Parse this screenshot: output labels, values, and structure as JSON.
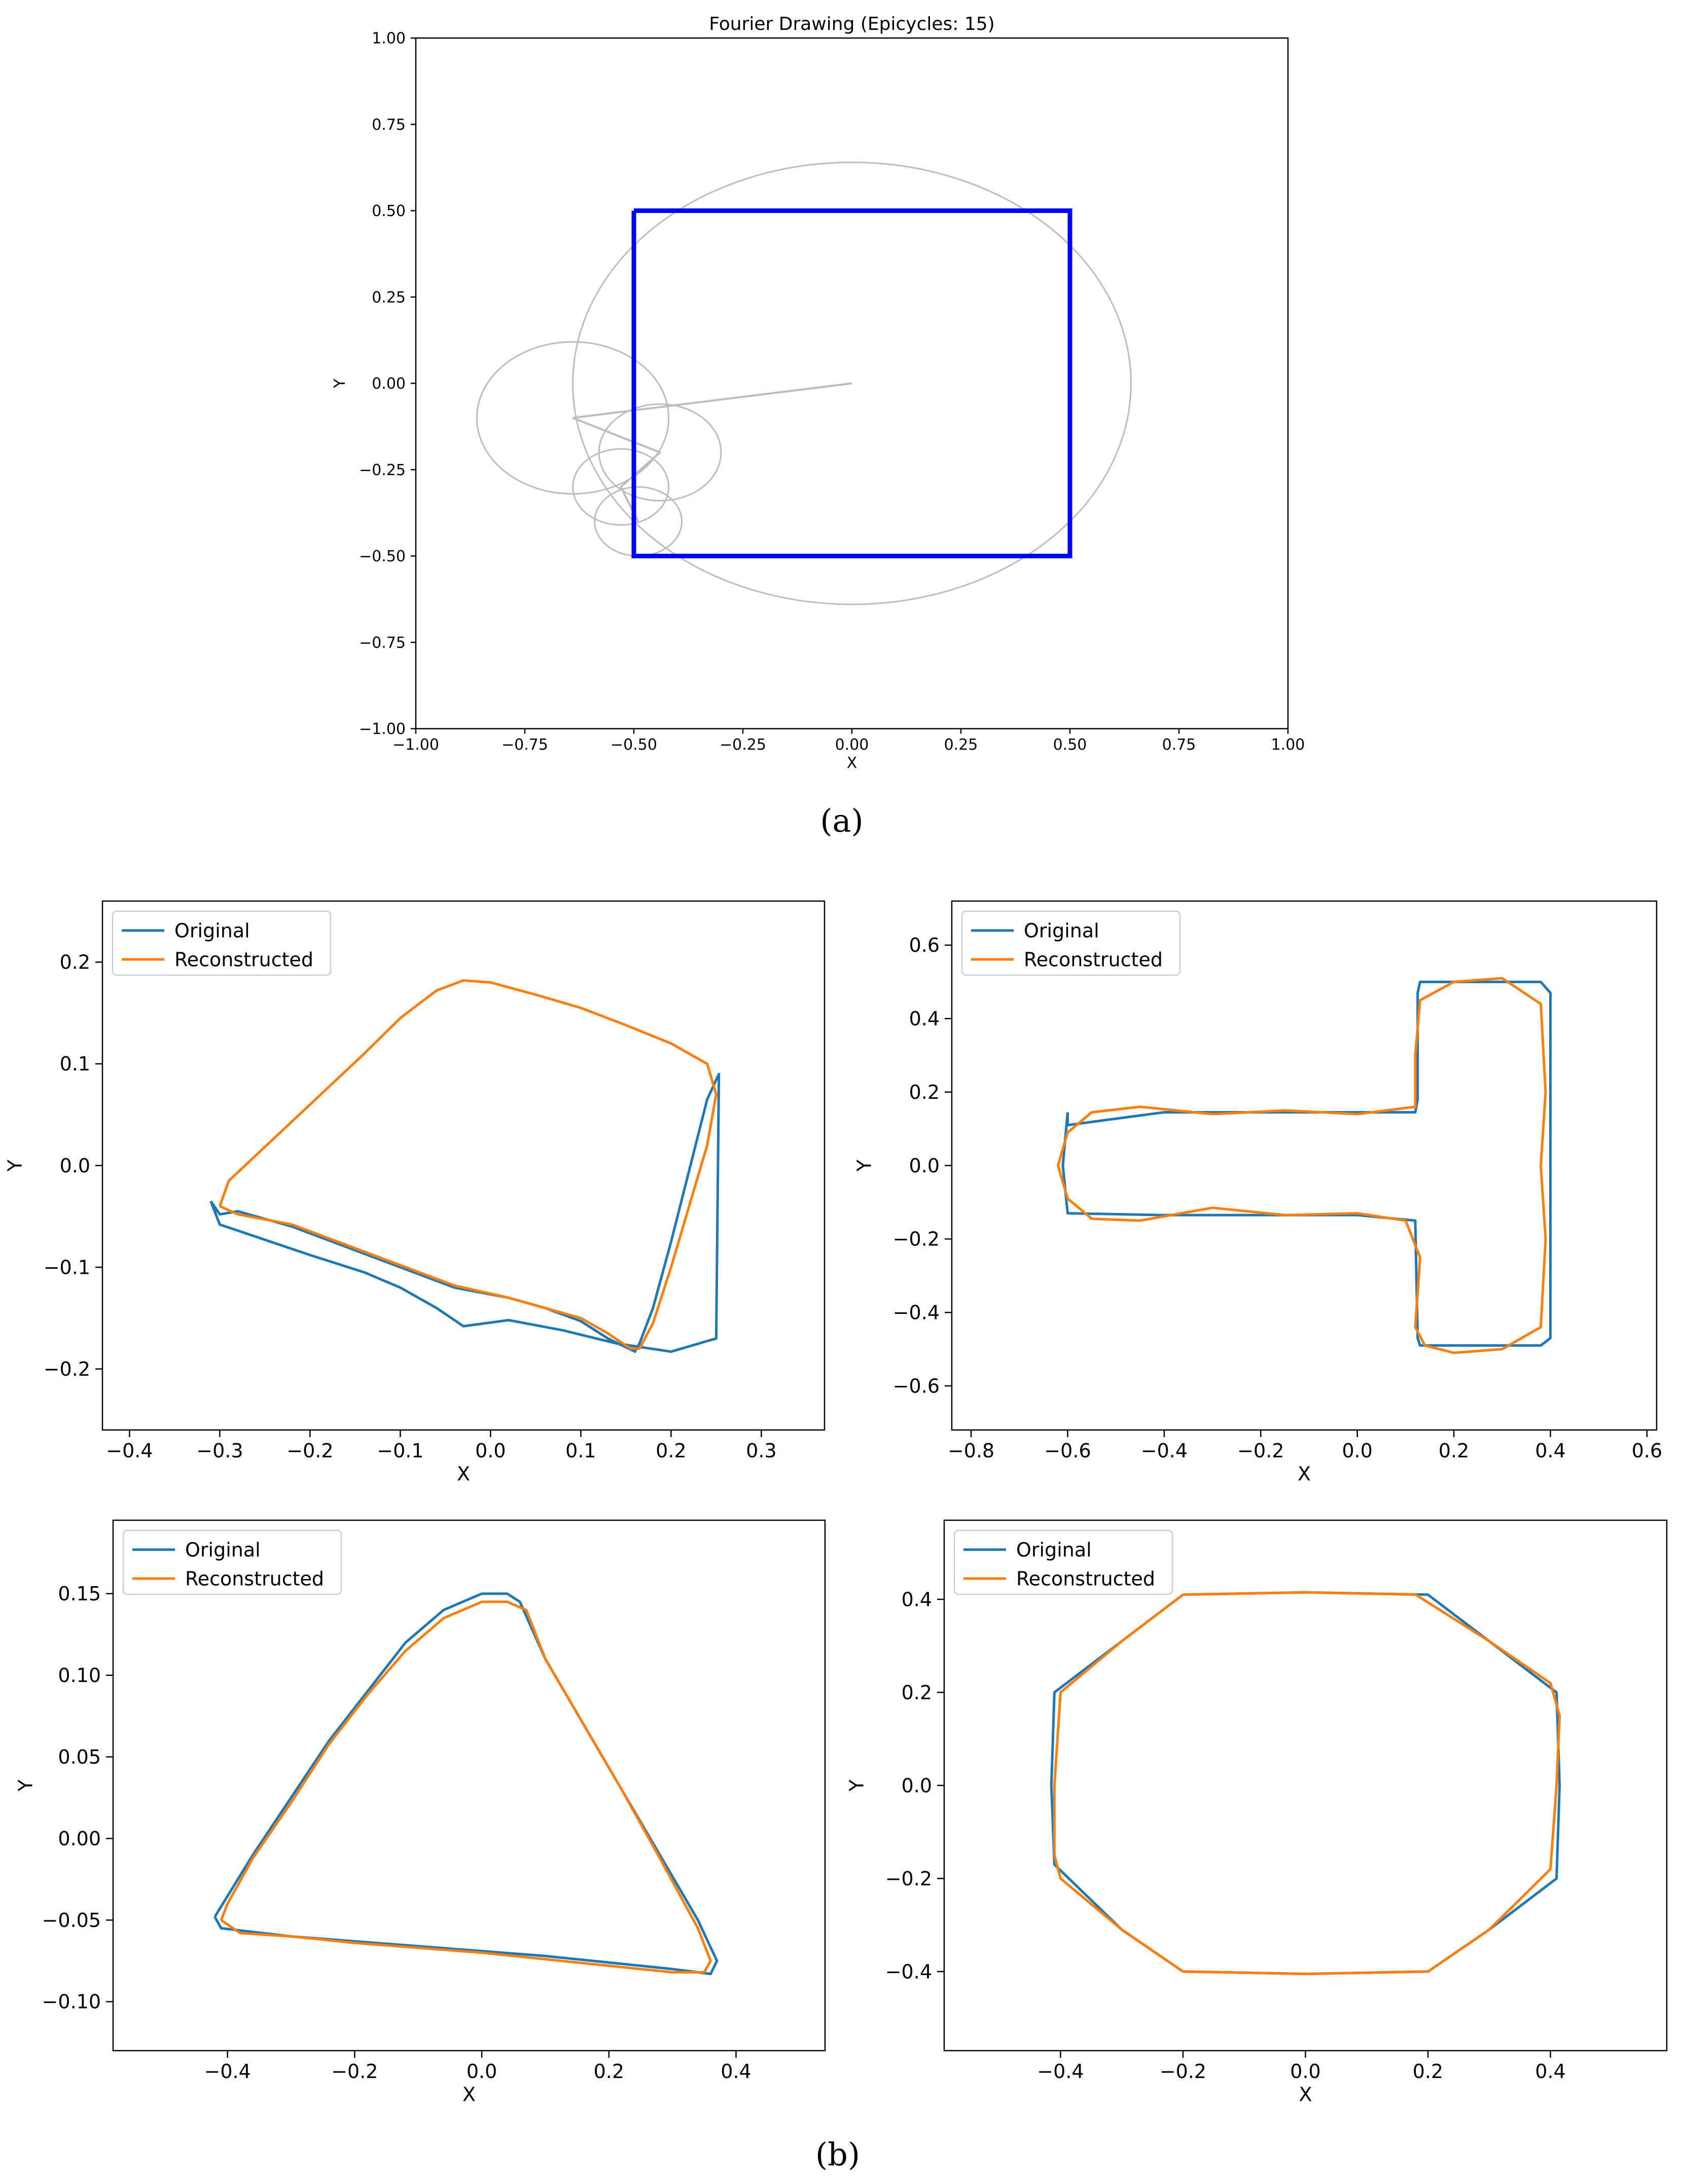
{
  "captions": {
    "a": "(a)",
    "b": "(b)"
  },
  "colors": {
    "original": "#1f77b4",
    "reconstructed": "#ff7f0e",
    "square": "#0000ff",
    "epicycle": "#bdbdbd"
  },
  "chart_data": [
    {
      "id": "a",
      "type": "line",
      "title": "Fourier Drawing (Epicycles: 15)",
      "xlabel": "X",
      "ylabel": "Y",
      "xlim": [
        -1.0,
        1.0
      ],
      "ylim": [
        -1.0,
        1.0
      ],
      "xticks": [
        -1.0,
        -0.75,
        -0.5,
        -0.25,
        0.0,
        0.25,
        0.5,
        0.75,
        1.0
      ],
      "yticks": [
        -1.0,
        -0.75,
        -0.5,
        -0.25,
        0.0,
        0.25,
        0.5,
        0.75,
        1.0
      ],
      "xtick_labels": [
        "−1.00",
        "−0.75",
        "−0.50",
        "−0.25",
        "0.00",
        "0.25",
        "0.50",
        "0.75",
        "1.00"
      ],
      "ytick_labels": [
        "−1.00",
        "−0.75",
        "−0.50",
        "−0.25",
        "0.00",
        "0.25",
        "0.50",
        "0.75",
        "1.00"
      ],
      "grid": false,
      "square": {
        "x": [
          -0.5,
          0.5,
          0.5,
          -0.5,
          -0.5
        ],
        "y": [
          0.5,
          0.5,
          -0.5,
          -0.5,
          0.5
        ]
      },
      "epicycles": [
        {
          "cx": 0.0,
          "cy": 0.0,
          "r": 0.64
        },
        {
          "cx": -0.64,
          "cy": -0.1,
          "r": 0.22
        },
        {
          "cx": -0.44,
          "cy": -0.2,
          "r": 0.14
        },
        {
          "cx": -0.53,
          "cy": -0.3,
          "r": 0.11
        },
        {
          "cx": -0.49,
          "cy": -0.4,
          "r": 0.1
        }
      ],
      "arms": {
        "x": [
          0.0,
          -0.64,
          -0.44,
          -0.53,
          -0.49
        ],
        "y": [
          0.0,
          -0.1,
          -0.2,
          -0.3,
          -0.4
        ]
      }
    },
    {
      "id": "b1",
      "type": "line",
      "xlabel": "X",
      "ylabel": "Y",
      "xlim": [
        -0.43,
        0.37
      ],
      "ylim": [
        -0.26,
        0.26
      ],
      "xticks": [
        -0.4,
        -0.3,
        -0.2,
        -0.1,
        0.0,
        0.1,
        0.2,
        0.3
      ],
      "yticks": [
        -0.2,
        -0.1,
        0.0,
        0.1,
        0.2
      ],
      "xtick_labels": [
        "−0.4",
        "−0.3",
        "−0.2",
        "−0.1",
        "0.0",
        "0.1",
        "0.2",
        "0.3"
      ],
      "ytick_labels": [
        "−0.2",
        "−0.1",
        "0.0",
        "0.1",
        "0.2"
      ],
      "legend": {
        "location": "upper-left",
        "entries": [
          "Original",
          "Reconstructed"
        ]
      },
      "series": [
        {
          "name": "Original",
          "x": [
            -0.31,
            -0.3,
            -0.26,
            -0.2,
            -0.14,
            -0.1,
            -0.06,
            -0.03,
            0.02,
            0.08,
            0.14,
            0.2,
            0.25,
            0.253,
            0.24,
            0.22,
            0.2,
            0.18,
            0.165,
            0.16,
            0.13,
            0.1,
            0.06,
            0.02,
            -0.04,
            -0.1,
            -0.16,
            -0.22,
            -0.28,
            -0.3,
            -0.31
          ],
          "y": [
            -0.035,
            -0.058,
            -0.07,
            -0.088,
            -0.105,
            -0.12,
            -0.14,
            -0.158,
            -0.152,
            -0.162,
            -0.175,
            -0.183,
            -0.17,
            0.09,
            0.065,
            -0.005,
            -0.075,
            -0.14,
            -0.175,
            -0.183,
            -0.17,
            -0.153,
            -0.14,
            -0.13,
            -0.12,
            -0.1,
            -0.08,
            -0.06,
            -0.045,
            -0.048,
            -0.035
          ]
        },
        {
          "name": "Reconstructed",
          "x": [
            -0.3,
            -0.29,
            -0.26,
            -0.2,
            -0.14,
            -0.1,
            -0.06,
            -0.03,
            0.0,
            0.05,
            0.1,
            0.15,
            0.2,
            0.24,
            0.25,
            0.24,
            0.22,
            0.2,
            0.18,
            0.165,
            0.155,
            0.13,
            0.1,
            0.06,
            0.02,
            -0.04,
            -0.1,
            -0.16,
            -0.22,
            -0.28,
            -0.3
          ],
          "y": [
            -0.04,
            -0.015,
            0.01,
            0.06,
            0.11,
            0.145,
            0.172,
            0.182,
            0.18,
            0.168,
            0.155,
            0.138,
            0.12,
            0.1,
            0.07,
            0.02,
            -0.04,
            -0.1,
            -0.155,
            -0.18,
            -0.18,
            -0.165,
            -0.15,
            -0.14,
            -0.13,
            -0.118,
            -0.098,
            -0.078,
            -0.058,
            -0.048,
            -0.04
          ]
        }
      ]
    },
    {
      "id": "b2",
      "type": "line",
      "xlabel": "X",
      "ylabel": "Y",
      "xlim": [
        -0.84,
        0.62
      ],
      "ylim": [
        -0.72,
        0.72
      ],
      "xticks": [
        -0.8,
        -0.6,
        -0.4,
        -0.2,
        0.0,
        0.2,
        0.4,
        0.6
      ],
      "yticks": [
        -0.6,
        -0.4,
        -0.2,
        0.0,
        0.2,
        0.4,
        0.6
      ],
      "xtick_labels": [
        "−0.8",
        "−0.6",
        "−0.4",
        "−0.2",
        "0.0",
        "0.2",
        "0.4",
        "0.6"
      ],
      "ytick_labels": [
        "−0.6",
        "−0.4",
        "−0.2",
        "0.0",
        "0.2",
        "0.4",
        "0.6"
      ],
      "legend": {
        "location": "upper-left",
        "entries": [
          "Original",
          "Reconstructed"
        ]
      },
      "series": [
        {
          "name": "Original",
          "x": [
            -0.6,
            -0.6,
            -0.4,
            -0.2,
            0.0,
            0.12,
            0.125,
            0.125,
            0.13,
            0.2,
            0.3,
            0.38,
            0.4,
            0.4,
            0.38,
            0.3,
            0.2,
            0.13,
            0.125,
            0.12,
            0.0,
            -0.2,
            -0.4,
            -0.6,
            -0.61,
            -0.6
          ],
          "y": [
            0.145,
            0.11,
            0.145,
            0.145,
            0.145,
            0.145,
            0.18,
            0.47,
            0.5,
            0.5,
            0.5,
            0.5,
            0.47,
            -0.47,
            -0.49,
            -0.49,
            -0.49,
            -0.49,
            -0.47,
            -0.15,
            -0.135,
            -0.135,
            -0.135,
            -0.13,
            0.0,
            0.145
          ]
        },
        {
          "name": "Reconstructed",
          "x": [
            -0.6,
            -0.62,
            -0.6,
            -0.55,
            -0.45,
            -0.3,
            -0.15,
            0.0,
            0.1,
            0.13,
            0.12,
            0.14,
            0.2,
            0.3,
            0.38,
            0.39,
            0.38,
            0.39,
            0.38,
            0.3,
            0.2,
            0.13,
            0.12,
            0.12,
            0.0,
            -0.15,
            -0.3,
            -0.45,
            -0.55,
            -0.6
          ],
          "y": [
            0.09,
            0.0,
            -0.09,
            -0.145,
            -0.15,
            -0.115,
            -0.135,
            -0.13,
            -0.15,
            -0.25,
            -0.44,
            -0.49,
            -0.51,
            -0.5,
            -0.44,
            -0.2,
            0.0,
            0.2,
            0.44,
            0.51,
            0.5,
            0.45,
            0.3,
            0.16,
            0.14,
            0.15,
            0.14,
            0.16,
            0.145,
            0.09
          ]
        }
      ]
    },
    {
      "id": "b3",
      "type": "line",
      "xlabel": "X",
      "ylabel": "Y",
      "xlim": [
        -0.58,
        0.54
      ],
      "ylim": [
        -0.13,
        0.195
      ],
      "xticks": [
        -0.4,
        -0.2,
        0.0,
        0.2,
        0.4
      ],
      "yticks": [
        -0.1,
        -0.05,
        0.0,
        0.05,
        0.1,
        0.15
      ],
      "xtick_labels": [
        "−0.4",
        "−0.2",
        "0.0",
        "0.2",
        "0.4"
      ],
      "ytick_labels": [
        "−0.10",
        "−0.05",
        "0.00",
        "0.05",
        "0.10",
        "0.15"
      ],
      "legend": {
        "location": "upper-left",
        "entries": [
          "Original",
          "Reconstructed"
        ]
      },
      "series": [
        {
          "name": "Original",
          "x": [
            -0.42,
            -0.36,
            -0.3,
            -0.24,
            -0.18,
            -0.12,
            -0.06,
            0.0,
            0.04,
            0.06,
            0.1,
            0.16,
            0.22,
            0.28,
            0.34,
            0.37,
            0.36,
            0.3,
            0.2,
            0.1,
            0.0,
            -0.1,
            -0.2,
            -0.3,
            -0.41,
            -0.42
          ],
          "y": [
            -0.048,
            -0.01,
            0.025,
            0.06,
            0.09,
            0.12,
            0.14,
            0.15,
            0.15,
            0.145,
            0.11,
            0.07,
            0.03,
            -0.01,
            -0.05,
            -0.075,
            -0.083,
            -0.08,
            -0.076,
            -0.072,
            -0.069,
            -0.066,
            -0.063,
            -0.06,
            -0.055,
            -0.048
          ]
        },
        {
          "name": "Reconstructed",
          "x": [
            -0.41,
            -0.4,
            -0.36,
            -0.3,
            -0.24,
            -0.18,
            -0.12,
            -0.06,
            0.0,
            0.04,
            0.07,
            0.1,
            0.16,
            0.22,
            0.28,
            0.34,
            0.36,
            0.35,
            0.3,
            0.2,
            0.1,
            0.0,
            -0.1,
            -0.2,
            -0.3,
            -0.38,
            -0.41
          ],
          "y": [
            -0.05,
            -0.04,
            -0.012,
            0.022,
            0.058,
            0.088,
            0.115,
            0.135,
            0.145,
            0.145,
            0.14,
            0.11,
            0.07,
            0.03,
            -0.012,
            -0.055,
            -0.075,
            -0.082,
            -0.082,
            -0.078,
            -0.074,
            -0.07,
            -0.067,
            -0.064,
            -0.06,
            -0.058,
            -0.05
          ]
        }
      ]
    },
    {
      "id": "b4",
      "type": "line",
      "xlabel": "X",
      "ylabel": "Y",
      "xlim": [
        -0.59,
        0.59
      ],
      "ylim": [
        -0.57,
        0.57
      ],
      "xticks": [
        -0.4,
        -0.2,
        0.0,
        0.2,
        0.4
      ],
      "yticks": [
        -0.4,
        -0.2,
        0.0,
        0.2,
        0.4
      ],
      "xtick_labels": [
        "−0.4",
        "−0.2",
        "0.0",
        "0.2",
        "0.4"
      ],
      "ytick_labels": [
        "−0.4",
        "−0.2",
        "0.0",
        "0.2",
        "0.4"
      ],
      "legend": {
        "location": "upper-left",
        "entries": [
          "Original",
          "Reconstructed"
        ]
      },
      "series": [
        {
          "name": "Original",
          "x": [
            -0.2,
            0.0,
            0.2,
            0.3,
            0.41,
            0.415,
            0.41,
            0.3,
            0.2,
            0.0,
            -0.2,
            -0.3,
            -0.41,
            -0.415,
            -0.41,
            -0.3,
            -0.2
          ],
          "y": [
            0.41,
            0.415,
            0.41,
            0.31,
            0.2,
            0.0,
            -0.2,
            -0.31,
            -0.4,
            -0.405,
            -0.4,
            -0.31,
            -0.17,
            0.0,
            0.2,
            0.31,
            0.41
          ]
        },
        {
          "name": "Reconstructed",
          "x": [
            -0.2,
            0.0,
            0.18,
            0.3,
            0.4,
            0.415,
            0.41,
            0.4,
            0.3,
            0.2,
            0.0,
            -0.2,
            -0.3,
            -0.4,
            -0.41,
            -0.41,
            -0.4,
            -0.3,
            -0.2
          ],
          "y": [
            0.41,
            0.415,
            0.41,
            0.31,
            0.22,
            0.15,
            0.0,
            -0.18,
            -0.31,
            -0.4,
            -0.405,
            -0.4,
            -0.31,
            -0.2,
            -0.15,
            0.0,
            0.2,
            0.31,
            0.41
          ]
        }
      ]
    }
  ]
}
